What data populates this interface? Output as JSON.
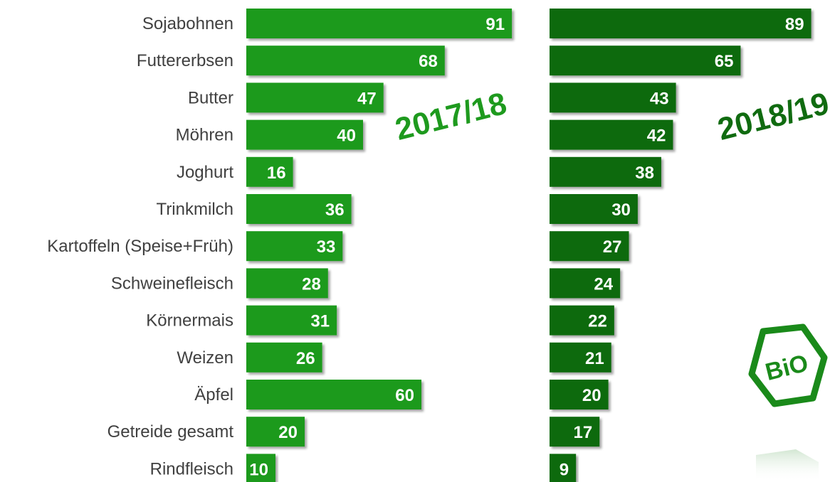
{
  "chart_data": [
    {
      "type": "bar",
      "orientation": "horizontal",
      "title": "2017/18",
      "categories": [
        "Sojabohnen",
        "Futtererbsen",
        "Butter",
        "Möhren",
        "Joghurt",
        "Trinkmilch",
        "Kartoffeln (Speise+Früh)",
        "Schweinefleisch",
        "Körnermais",
        "Weizen",
        "Äpfel",
        "Getreide gesamt",
        "Rindfleisch"
      ],
      "values": [
        91,
        68,
        47,
        40,
        16,
        36,
        33,
        28,
        31,
        26,
        60,
        20,
        10
      ],
      "xlim": [
        0,
        100
      ],
      "grid": false,
      "color": "#1e9a1e"
    },
    {
      "type": "bar",
      "orientation": "horizontal",
      "title": "2018/19",
      "categories": [
        "Sojabohnen",
        "Futtererbsen",
        "Butter",
        "Möhren",
        "Joghurt",
        "Trinkmilch",
        "Kartoffeln (Speise+Früh)",
        "Schweinefleisch",
        "Körnermais",
        "Weizen",
        "Äpfel",
        "Getreide gesamt",
        "Rindfleisch"
      ],
      "values": [
        89,
        65,
        43,
        42,
        38,
        30,
        27,
        24,
        22,
        21,
        20,
        17,
        9
      ],
      "xlim": [
        0,
        100
      ],
      "grid": false,
      "color": "#106b10"
    }
  ],
  "logo": {
    "text": "BiO",
    "color": "#1a8a1a"
  }
}
